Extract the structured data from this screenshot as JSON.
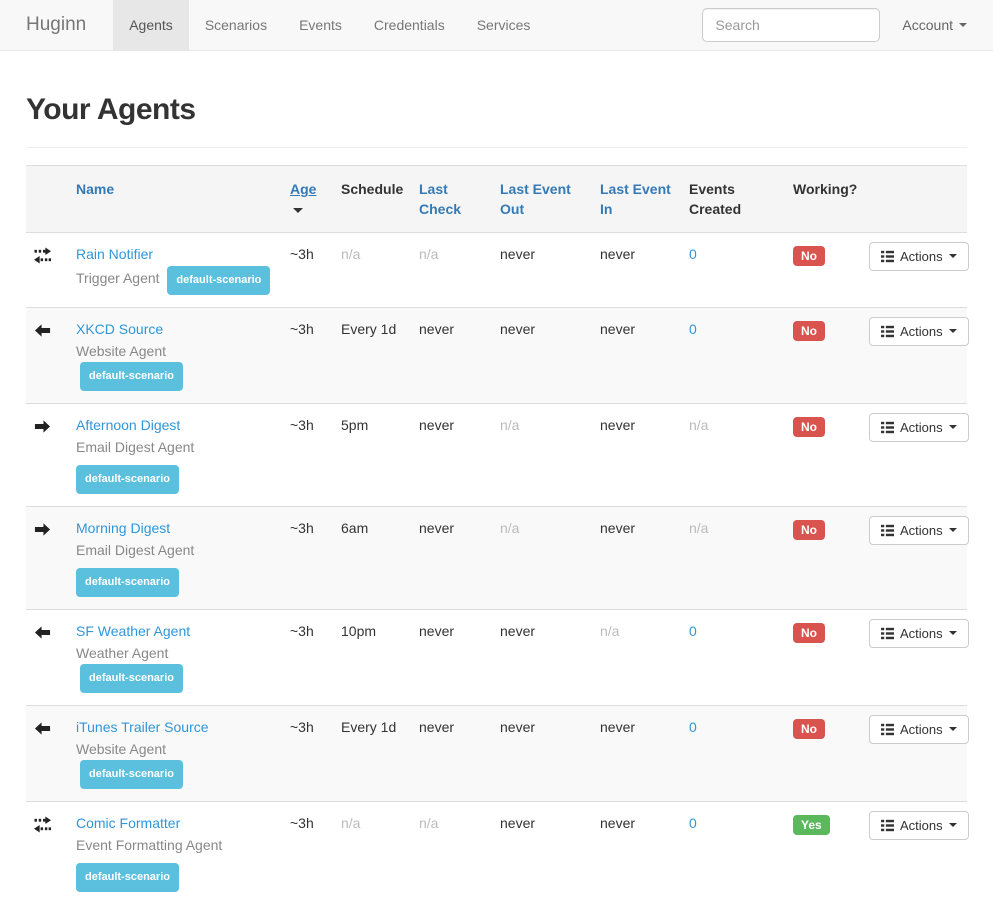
{
  "navbar": {
    "brand": "Huginn",
    "items": [
      {
        "label": "Agents",
        "active": true
      },
      {
        "label": "Scenarios",
        "active": false
      },
      {
        "label": "Events",
        "active": false
      },
      {
        "label": "Credentials",
        "active": false
      },
      {
        "label": "Services",
        "active": false
      }
    ],
    "search": {
      "placeholder": "Search"
    },
    "account": {
      "label": "Account"
    }
  },
  "page": {
    "title": "Your Agents"
  },
  "table": {
    "headers": {
      "name": "Name",
      "age": "Age",
      "schedule": "Schedule",
      "last_check": "Last Check",
      "last_event_out": "Last Event Out",
      "last_event_in": "Last Event In",
      "events_created": "Events Created",
      "working": "Working?"
    },
    "sort": {
      "column": "age",
      "direction": "desc"
    },
    "actions_label": "Actions",
    "rows": [
      {
        "icon": "transfer-icon",
        "name": "Rain Notifier",
        "type": "Trigger Agent",
        "scenario": "default-scenario",
        "scenario_own_line": false,
        "age": "~3h",
        "schedule": {
          "text": "n/a",
          "muted": true
        },
        "last_check": {
          "text": "n/a",
          "muted": true
        },
        "last_event_out": {
          "text": "never"
        },
        "last_event_in": {
          "text": "never"
        },
        "events_created": {
          "text": "0",
          "link": true
        },
        "working": {
          "text": "No",
          "status": "no"
        }
      },
      {
        "icon": "arrow-left-icon",
        "name": "XKCD Source",
        "type": "Website Agent",
        "scenario": "default-scenario",
        "scenario_own_line": false,
        "age": "~3h",
        "schedule": {
          "text": "Every 1d"
        },
        "last_check": {
          "text": "never"
        },
        "last_event_out": {
          "text": "never"
        },
        "last_event_in": {
          "text": "never"
        },
        "events_created": {
          "text": "0",
          "link": true
        },
        "working": {
          "text": "No",
          "status": "no"
        }
      },
      {
        "icon": "arrow-right-icon",
        "name": "Afternoon Digest",
        "type": "Email Digest Agent",
        "scenario": "default-scenario",
        "scenario_own_line": true,
        "age": "~3h",
        "schedule": {
          "text": "5pm"
        },
        "last_check": {
          "text": "never"
        },
        "last_event_out": {
          "text": "n/a",
          "muted": true
        },
        "last_event_in": {
          "text": "never"
        },
        "events_created": {
          "text": "n/a",
          "muted": true
        },
        "working": {
          "text": "No",
          "status": "no"
        }
      },
      {
        "icon": "arrow-right-icon",
        "name": "Morning Digest",
        "type": "Email Digest Agent",
        "scenario": "default-scenario",
        "scenario_own_line": true,
        "age": "~3h",
        "schedule": {
          "text": "6am"
        },
        "last_check": {
          "text": "never"
        },
        "last_event_out": {
          "text": "n/a",
          "muted": true
        },
        "last_event_in": {
          "text": "never"
        },
        "events_created": {
          "text": "n/a",
          "muted": true
        },
        "working": {
          "text": "No",
          "status": "no"
        }
      },
      {
        "icon": "arrow-left-icon",
        "name": "SF Weather Agent",
        "type": "Weather Agent",
        "scenario": "default-scenario",
        "scenario_own_line": false,
        "age": "~3h",
        "schedule": {
          "text": "10pm"
        },
        "last_check": {
          "text": "never"
        },
        "last_event_out": {
          "text": "never"
        },
        "last_event_in": {
          "text": "n/a",
          "muted": true
        },
        "events_created": {
          "text": "0",
          "link": true
        },
        "working": {
          "text": "No",
          "status": "no"
        }
      },
      {
        "icon": "arrow-left-icon",
        "name": "iTunes Trailer Source",
        "type": "Website Agent",
        "scenario": "default-scenario",
        "scenario_own_line": false,
        "age": "~3h",
        "schedule": {
          "text": "Every 1d"
        },
        "last_check": {
          "text": "never"
        },
        "last_event_out": {
          "text": "never"
        },
        "last_event_in": {
          "text": "never"
        },
        "events_created": {
          "text": "0",
          "link": true
        },
        "working": {
          "text": "No",
          "status": "no"
        }
      },
      {
        "icon": "transfer-icon",
        "name": "Comic Formatter",
        "type": "Event Formatting Agent",
        "scenario": "default-scenario",
        "scenario_own_line": true,
        "age": "~3h",
        "schedule": {
          "text": "n/a",
          "muted": true
        },
        "last_check": {
          "text": "n/a",
          "muted": true
        },
        "last_event_out": {
          "text": "never"
        },
        "last_event_in": {
          "text": "never"
        },
        "events_created": {
          "text": "0",
          "link": true
        },
        "working": {
          "text": "Yes",
          "status": "yes"
        }
      }
    ]
  },
  "colors": {
    "header_link": "#337ab7",
    "agent_link": "#2f96d8",
    "scenario_badge": "#5bc0de",
    "working_no": "#d9534f",
    "working_yes": "#5cb85c",
    "navbar_bg": "#f8f8f8",
    "table_header_bg": "#f5f5f5",
    "stripe_bg": "#f9f9f9"
  }
}
